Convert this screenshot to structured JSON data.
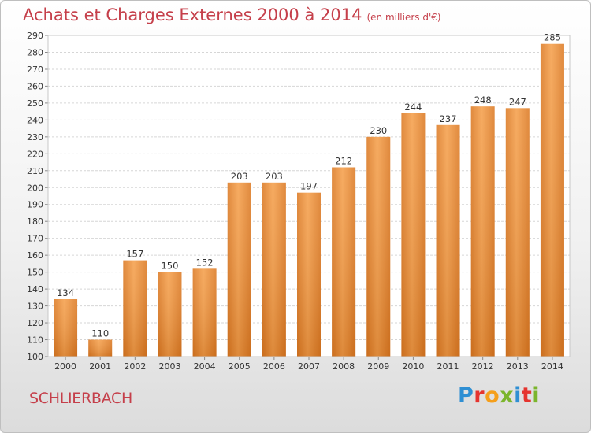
{
  "title": "Achats et Charges Externes 2000 à 2014",
  "unit": "(en milliers d'€)",
  "commune": "SCHLIERBACH",
  "logo": {
    "letters": [
      "P",
      "r",
      "o",
      "x",
      "i",
      "t",
      "i"
    ],
    "colors": [
      "#2f8fd3",
      "#e5342f",
      "#f59f1b",
      "#7bb52c",
      "#2f8fd3",
      "#e5342f",
      "#7bb52c"
    ]
  },
  "colors": {
    "bar": "#ee8f36",
    "title": "#c53f4a"
  },
  "chart_data": {
    "type": "bar",
    "title": "Achats et Charges Externes 2000 à 2014",
    "xlabel": "",
    "ylabel": "",
    "categories": [
      "2000",
      "2001",
      "2002",
      "2003",
      "2004",
      "2005",
      "2006",
      "2007",
      "2008",
      "2009",
      "2010",
      "2011",
      "2012",
      "2013",
      "2014"
    ],
    "values": [
      134,
      110,
      157,
      150,
      152,
      203,
      203,
      197,
      212,
      230,
      244,
      237,
      248,
      247,
      285
    ],
    "ylim": [
      100,
      290
    ],
    "yticks": [
      100,
      110,
      120,
      130,
      140,
      150,
      160,
      170,
      180,
      190,
      200,
      210,
      220,
      230,
      240,
      250,
      260,
      270,
      280,
      290
    ],
    "grid": true
  }
}
